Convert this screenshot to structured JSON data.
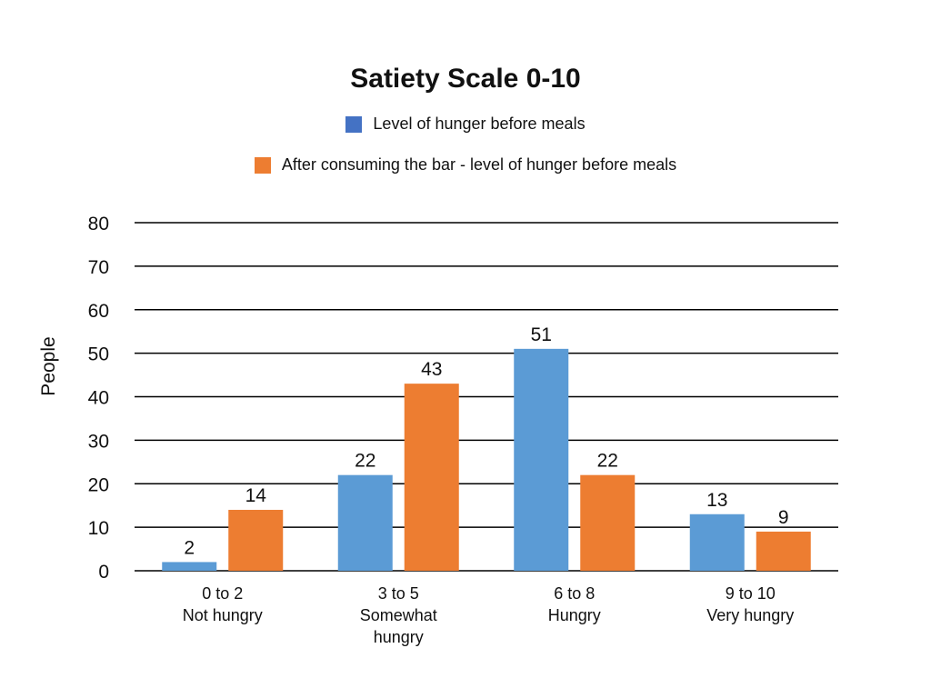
{
  "chart_data": {
    "type": "bar",
    "title": "Satiety Scale 0-10",
    "xlabel": "",
    "ylabel": "People",
    "ylim": [
      0,
      80
    ],
    "yticks": [
      0,
      10,
      20,
      30,
      40,
      50,
      60,
      70,
      80
    ],
    "grid": true,
    "legend_position": "top",
    "categories": [
      [
        "0 to 2",
        "Not hungry"
      ],
      [
        "3 to 5",
        "Somewhat",
        "hungry"
      ],
      [
        "6 to 8",
        "Hungry"
      ],
      [
        "9 to 10",
        "Very hungry"
      ]
    ],
    "series": [
      {
        "name": "Level of hunger before meals",
        "legend_color": "#4472c4",
        "color": "#5b9bd5",
        "values": [
          2,
          22,
          51,
          13
        ]
      },
      {
        "name": "After consuming the bar - level of hunger before meals",
        "legend_color": "#ed7d31",
        "color": "#ed7d31",
        "values": [
          14,
          43,
          22,
          9
        ]
      }
    ]
  }
}
